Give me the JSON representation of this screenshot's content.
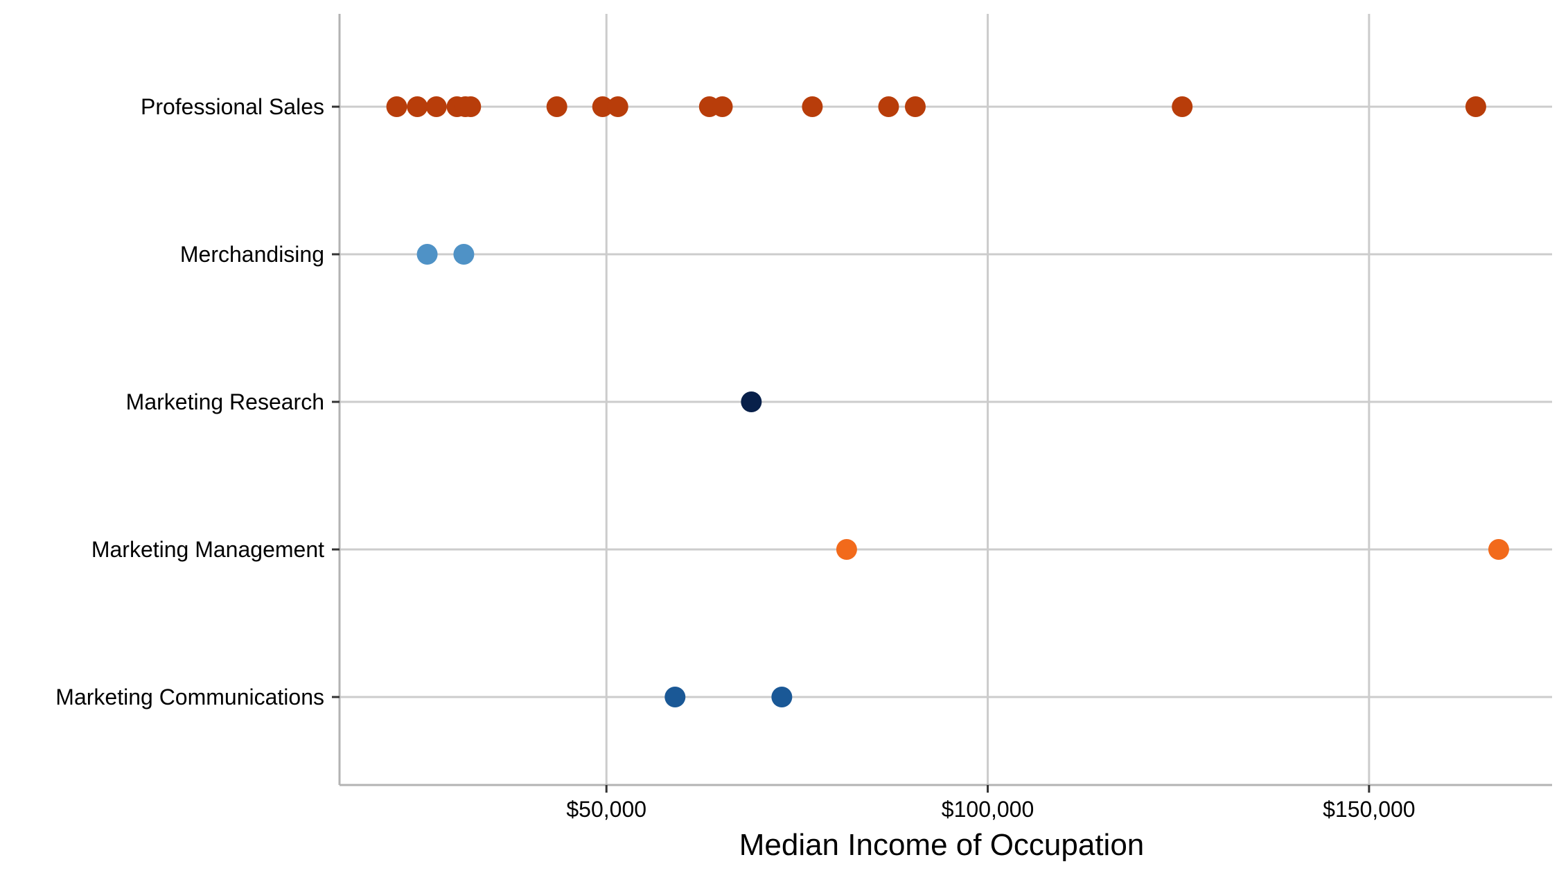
{
  "chart_data": {
    "type": "scatter",
    "title": "",
    "xlabel": "Median Income of Occupation",
    "ylabel": "",
    "xlim": [
      15000,
      174000
    ],
    "x_ticks": [
      {
        "value": 50000,
        "label": "$50,000"
      },
      {
        "value": 100000,
        "label": "$100,000"
      },
      {
        "value": 150000,
        "label": "$150,000"
      }
    ],
    "categories": [
      "Marketing Communications",
      "Marketing Management",
      "Marketing Research",
      "Merchandising",
      "Professional Sales"
    ],
    "grid": true,
    "legend": "none",
    "series": [
      {
        "category": "Professional Sales",
        "color": "#b83d0a",
        "values": [
          22500,
          25200,
          27700,
          30400,
          31500,
          32200,
          43500,
          49500,
          51500,
          63500,
          65200,
          77000,
          87000,
          90500,
          125500,
          164000
        ]
      },
      {
        "category": "Merchandising",
        "color": "#4f92c6",
        "values": [
          26500,
          31300
        ]
      },
      {
        "category": "Marketing Research",
        "color": "#08204a",
        "values": [
          69000
        ]
      },
      {
        "category": "Marketing Management",
        "color": "#f26a1b",
        "values": [
          81500,
          167000
        ]
      },
      {
        "category": "Marketing Communications",
        "color": "#1a5896",
        "values": [
          59000,
          73000
        ]
      }
    ]
  }
}
